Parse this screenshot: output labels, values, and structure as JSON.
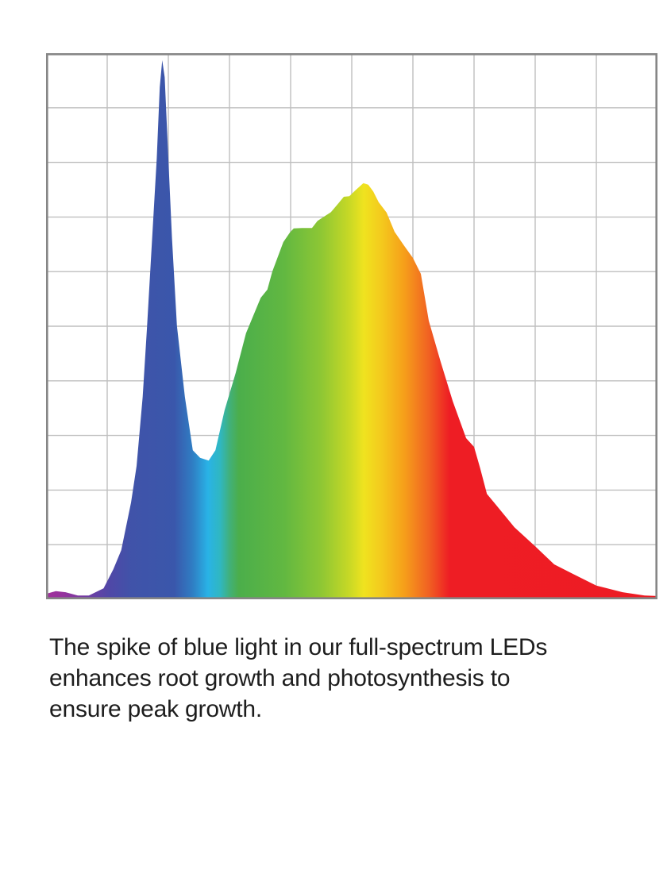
{
  "chart_data": {
    "type": "area",
    "title": "",
    "xlabel": "",
    "ylabel": "",
    "description": "Full-spectrum LED spectral power distribution: sharp blue spike near left, dip in cyan, broad green-yellow-orange hump, long red decay tail",
    "grid": {
      "cols": 10,
      "rows": 10,
      "color": "#bfbfbf"
    },
    "border_color": "#868686",
    "x_range_normalized": [
      0,
      1
    ],
    "y_range_normalized": [
      0,
      1
    ],
    "profile_points": [
      [
        0.0,
        0.01
      ],
      [
        0.016,
        0.015
      ],
      [
        0.032,
        0.013
      ],
      [
        0.052,
        0.007
      ],
      [
        0.07,
        0.007
      ],
      [
        0.094,
        0.02
      ],
      [
        0.11,
        0.055
      ],
      [
        0.123,
        0.09
      ],
      [
        0.139,
        0.177
      ],
      [
        0.148,
        0.244
      ],
      [
        0.158,
        0.371
      ],
      [
        0.165,
        0.497
      ],
      [
        0.171,
        0.613
      ],
      [
        0.181,
        0.807
      ],
      [
        0.186,
        0.938
      ],
      [
        0.19,
        0.987
      ],
      [
        0.194,
        0.956
      ],
      [
        0.2,
        0.807
      ],
      [
        0.206,
        0.661
      ],
      [
        0.214,
        0.501
      ],
      [
        0.227,
        0.371
      ],
      [
        0.24,
        0.273
      ],
      [
        0.252,
        0.259
      ],
      [
        0.266,
        0.254
      ],
      [
        0.277,
        0.273
      ],
      [
        0.292,
        0.346
      ],
      [
        0.31,
        0.414
      ],
      [
        0.327,
        0.487
      ],
      [
        0.351,
        0.552
      ],
      [
        0.362,
        0.567
      ],
      [
        0.37,
        0.6
      ],
      [
        0.388,
        0.654
      ],
      [
        0.399,
        0.672
      ],
      [
        0.405,
        0.679
      ],
      [
        0.419,
        0.68
      ],
      [
        0.435,
        0.68
      ],
      [
        0.444,
        0.693
      ],
      [
        0.466,
        0.709
      ],
      [
        0.478,
        0.725
      ],
      [
        0.487,
        0.737
      ],
      [
        0.496,
        0.738
      ],
      [
        0.506,
        0.749
      ],
      [
        0.519,
        0.762
      ],
      [
        0.527,
        0.759
      ],
      [
        0.535,
        0.747
      ],
      [
        0.544,
        0.727
      ],
      [
        0.557,
        0.708
      ],
      [
        0.57,
        0.673
      ],
      [
        0.584,
        0.65
      ],
      [
        0.6,
        0.625
      ],
      [
        0.613,
        0.596
      ],
      [
        0.626,
        0.51
      ],
      [
        0.645,
        0.436
      ],
      [
        0.665,
        0.363
      ],
      [
        0.687,
        0.295
      ],
      [
        0.7,
        0.279
      ],
      [
        0.71,
        0.24
      ],
      [
        0.721,
        0.193
      ],
      [
        0.735,
        0.174
      ],
      [
        0.766,
        0.132
      ],
      [
        0.8,
        0.097
      ],
      [
        0.831,
        0.064
      ],
      [
        0.861,
        0.047
      ],
      [
        0.9,
        0.025
      ],
      [
        0.943,
        0.013
      ],
      [
        0.979,
        0.007
      ],
      [
        1.0,
        0.006
      ]
    ],
    "gradient_stops": [
      {
        "offset": 0.0,
        "color": "#a2309b"
      },
      {
        "offset": 0.03,
        "color": "#93349d"
      },
      {
        "offset": 0.07,
        "color": "#6e3ea4"
      },
      {
        "offset": 0.105,
        "color": "#4f48a7"
      },
      {
        "offset": 0.14,
        "color": "#4053a9"
      },
      {
        "offset": 0.21,
        "color": "#3a57ab"
      },
      {
        "offset": 0.24,
        "color": "#2f7ec4"
      },
      {
        "offset": 0.265,
        "color": "#29b3e6"
      },
      {
        "offset": 0.285,
        "color": "#30b7c0"
      },
      {
        "offset": 0.3,
        "color": "#41b07b"
      },
      {
        "offset": 0.315,
        "color": "#4bae4b"
      },
      {
        "offset": 0.39,
        "color": "#62b841"
      },
      {
        "offset": 0.45,
        "color": "#8ec734"
      },
      {
        "offset": 0.495,
        "color": "#c6d826"
      },
      {
        "offset": 0.52,
        "color": "#f0e31f"
      },
      {
        "offset": 0.55,
        "color": "#f4c81d"
      },
      {
        "offset": 0.585,
        "color": "#f6a01a"
      },
      {
        "offset": 0.625,
        "color": "#f16322"
      },
      {
        "offset": 0.66,
        "color": "#ee1d24"
      },
      {
        "offset": 1.0,
        "color": "#ed1c24"
      }
    ]
  },
  "caption": {
    "lines": [
      "The spike of blue light in our full-spectrum LEDs",
      "enhances root growth and photosynthesis to",
      "ensure peak growth."
    ]
  }
}
